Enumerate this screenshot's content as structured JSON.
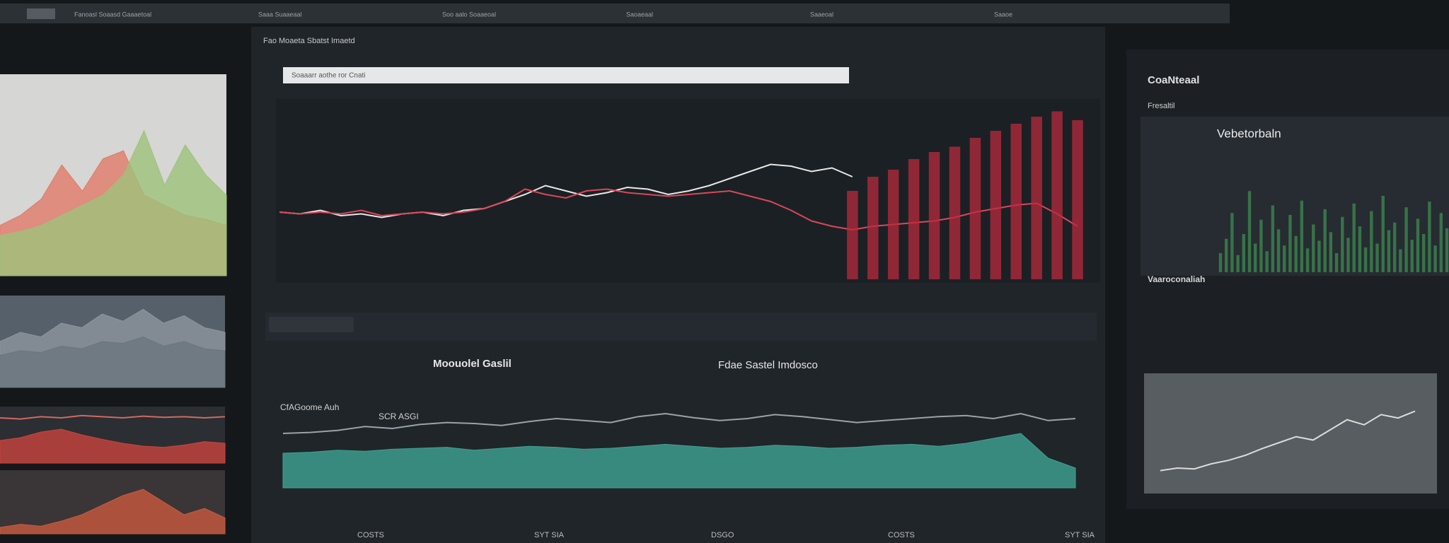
{
  "header": {
    "tabs": [
      "Fanoasl Soaasd Gaaaetoal",
      "Saaa Suaaeaal",
      "Soo aalo Soaaeoal",
      "Saoaeaal",
      "Saaeoal",
      "Saaoe"
    ]
  },
  "main_panel": {
    "title": "Fao Moaeta Sbatst Imaetd",
    "search_placeholder": "Soaaarr aothe ror Cnati",
    "chart": {
      "type": "line",
      "ylim": [
        0,
        100
      ],
      "series": [
        {
          "kind": "line",
          "color": "#e8e8e8",
          "values": [
            38,
            37,
            39,
            36,
            37,
            35,
            37,
            38,
            36,
            39,
            40,
            44,
            48,
            53,
            50,
            47,
            49,
            52,
            51,
            48,
            50,
            53,
            57,
            61,
            65,
            64,
            61,
            63,
            58,
            null,
            null,
            null,
            null,
            null,
            null,
            null,
            null,
            null,
            null,
            null
          ]
        },
        {
          "kind": "line",
          "color": "#d9475a",
          "values": [
            38,
            37,
            38,
            37,
            39,
            36,
            37,
            38,
            37,
            38,
            40,
            44,
            51,
            48,
            46,
            50,
            51,
            49,
            48,
            47,
            48,
            49,
            50,
            47,
            44,
            39,
            33,
            30,
            28,
            30,
            31,
            32,
            33,
            35,
            38,
            40,
            42,
            43,
            37,
            30
          ]
        },
        {
          "kind": "bar",
          "color": "#b8293e",
          "values": [
            null,
            null,
            null,
            null,
            null,
            null,
            null,
            null,
            null,
            null,
            null,
            null,
            null,
            null,
            null,
            null,
            null,
            null,
            null,
            null,
            null,
            null,
            null,
            null,
            null,
            null,
            null,
            null,
            50,
            58,
            62,
            68,
            72,
            75,
            80,
            84,
            88,
            92,
            95,
            90
          ]
        }
      ]
    },
    "lower_chart": {
      "type": "area",
      "title": "Moouolel Gaslil",
      "subtitle": "Fdae Sastel Imdosco",
      "label_a": "CfAGoome Auh",
      "label_b": "SCR ASGI",
      "ylim": [
        0,
        100
      ],
      "series": [
        {
          "kind": "line",
          "color": "#9aa3a8",
          "values": [
            55,
            56,
            58,
            62,
            60,
            64,
            66,
            65,
            63,
            67,
            70,
            68,
            66,
            72,
            75,
            71,
            68,
            70,
            74,
            72,
            69,
            66,
            68,
            70,
            72,
            73,
            70,
            75,
            68,
            70
          ]
        },
        {
          "kind": "area",
          "color": "#3fa394",
          "values": [
            35,
            36,
            38,
            37,
            39,
            40,
            41,
            38,
            40,
            42,
            41,
            39,
            40,
            42,
            44,
            42,
            40,
            41,
            43,
            42,
            40,
            41,
            43,
            44,
            42,
            45,
            50,
            55,
            30,
            20
          ]
        }
      ]
    },
    "footer": [
      "COSTS",
      "SYT SIA",
      "DSGO",
      "COSTS",
      "SYT SIA"
    ]
  },
  "right_panel": {
    "title": "CoaNteaal",
    "subtitle": "Fresaltil",
    "chart": {
      "type": "bar",
      "title": "Vebetorbaln",
      "ylim": [
        0,
        100
      ],
      "series": [
        {
          "kind": "bar",
          "color": "#3f8a52",
          "values": [
            20,
            35,
            62,
            18,
            40,
            85,
            30,
            55,
            22,
            70,
            45,
            28,
            60,
            38,
            75,
            25,
            50,
            33,
            66,
            42,
            20,
            58,
            36,
            72,
            48,
            26,
            64,
            30,
            80,
            44,
            52,
            24,
            68,
            34,
            56,
            40,
            74,
            28,
            62,
            46
          ]
        }
      ]
    },
    "section_title": "Vaaroconaliah",
    "small_chart": {
      "type": "line",
      "ylim": [
        0,
        100
      ],
      "series": [
        {
          "kind": "line",
          "color": "#dcdcdc",
          "values": [
            12,
            15,
            14,
            20,
            24,
            30,
            38,
            45,
            52,
            48,
            60,
            72,
            66,
            78,
            74,
            82
          ]
        }
      ]
    }
  },
  "left_panels": [
    {
      "type": "area",
      "ylim": [
        0,
        100
      ],
      "background": "#d6d6d4",
      "series": [
        {
          "kind": "area",
          "color": "#e07a68",
          "values": [
            25,
            30,
            38,
            55,
            42,
            58,
            62,
            40,
            35,
            30,
            28,
            25
          ]
        },
        {
          "kind": "area",
          "color": "#9dc27a",
          "values": [
            20,
            22,
            25,
            30,
            35,
            40,
            50,
            72,
            45,
            65,
            50,
            40
          ]
        }
      ]
    },
    {
      "type": "area",
      "ylim": [
        0,
        100
      ],
      "background": "#56606a",
      "series": [
        {
          "kind": "area",
          "color": "#8d969e",
          "values": [
            50,
            60,
            55,
            70,
            65,
            80,
            72,
            85,
            70,
            78,
            65,
            60
          ]
        },
        {
          "kind": "area",
          "color": "#6c757e",
          "values": [
            35,
            40,
            38,
            45,
            42,
            50,
            48,
            55,
            45,
            50,
            42,
            40
          ]
        }
      ]
    },
    {
      "type": "area",
      "ylim": [
        0,
        100
      ],
      "background": "#2b2e32",
      "series": [
        {
          "kind": "area",
          "color": "#c9433d",
          "values": [
            40,
            45,
            55,
            60,
            50,
            42,
            35,
            30,
            28,
            32,
            38,
            35
          ]
        },
        {
          "kind": "line",
          "color": "#d06a60",
          "values": [
            80,
            78,
            82,
            80,
            84,
            82,
            80,
            83,
            81,
            82,
            80,
            82
          ]
        }
      ]
    },
    {
      "type": "area",
      "ylim": [
        0,
        100
      ],
      "background": "#3a3536",
      "series": [
        {
          "kind": "area",
          "color": "#c95a3e",
          "values": [
            10,
            15,
            12,
            20,
            30,
            45,
            60,
            70,
            50,
            30,
            40,
            25
          ]
        }
      ]
    }
  ]
}
